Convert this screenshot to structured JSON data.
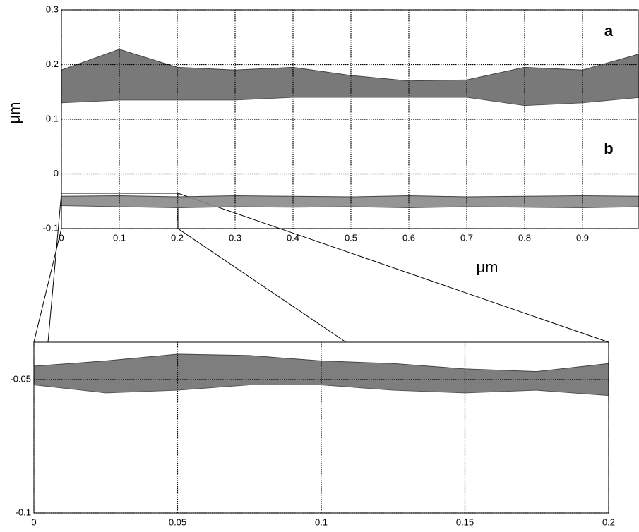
{
  "chart_data": [
    {
      "type": "band",
      "xlabel": "μm",
      "ylabel": "μm",
      "annotations": [
        "a",
        "b"
      ],
      "xlim": [
        0,
        1
      ],
      "ylim": [
        -0.1,
        0.3
      ],
      "xticks": [
        0,
        0.1,
        0.2,
        0.3,
        0.4,
        0.5,
        0.6,
        0.7,
        0.8,
        0.9
      ],
      "yticks": [
        -0.1,
        0,
        0.1,
        0.2,
        0.3
      ],
      "grid": true,
      "x": [
        0,
        0.1,
        0.2,
        0.3,
        0.4,
        0.5,
        0.6,
        0.7,
        0.8,
        0.9,
        1
      ],
      "series": [
        {
          "color": "#6a6a6a",
          "values": [
            0.19,
            0.228,
            0.195,
            0.19,
            0.195,
            0.18,
            0.17,
            0.172,
            0.195,
            0.19,
            0.22
          ],
          "lower": [
            0.13,
            0.135,
            0.135,
            0.135,
            0.14,
            0.14,
            0.14,
            0.14,
            0.125,
            0.13,
            0.14
          ]
        },
        {
          "color": "#8a8a8a",
          "values": [
            -0.041,
            -0.04,
            -0.042,
            -0.04,
            -0.041,
            -0.042,
            -0.04,
            -0.042,
            -0.041,
            -0.04,
            -0.041
          ],
          "lower": [
            -0.058,
            -0.06,
            -0.062,
            -0.06,
            -0.061,
            -0.06,
            -0.062,
            -0.06,
            -0.061,
            -0.062,
            -0.06
          ]
        }
      ]
    },
    {
      "type": "band",
      "xlim": [
        0,
        0.2
      ],
      "ylim": [
        -0.1,
        -0.036
      ],
      "xticks": [
        0,
        0.05,
        0.1,
        0.15,
        0.2
      ],
      "yticks": [
        -0.1,
        -0.05
      ],
      "grid": true,
      "x": [
        0,
        0.025,
        0.05,
        0.075,
        0.1,
        0.125,
        0.15,
        0.175,
        0.2
      ],
      "series": [
        {
          "color": "#707070",
          "values": [
            -0.045,
            -0.043,
            -0.0405,
            -0.041,
            -0.043,
            -0.044,
            -0.046,
            -0.047,
            -0.044
          ],
          "lower": [
            -0.052,
            -0.055,
            -0.054,
            -0.052,
            -0.052,
            -0.054,
            -0.055,
            -0.054,
            -0.056
          ]
        }
      ]
    }
  ]
}
